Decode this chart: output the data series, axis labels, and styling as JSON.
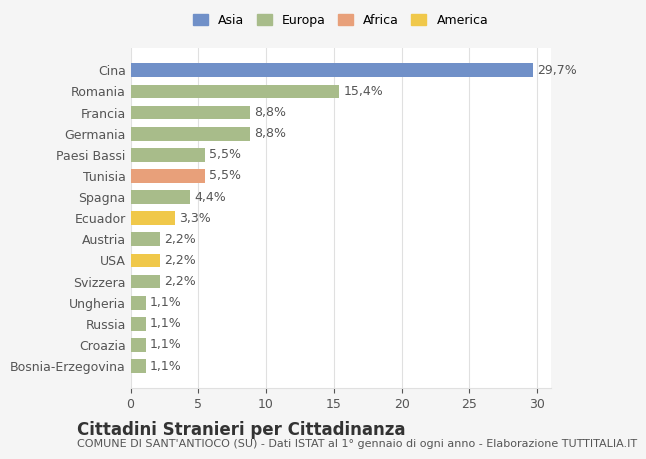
{
  "countries": [
    "Bosnia-Erzegovina",
    "Croazia",
    "Russia",
    "Ungheria",
    "Svizzera",
    "USA",
    "Austria",
    "Ecuador",
    "Spagna",
    "Tunisia",
    "Paesi Bassi",
    "Germania",
    "Francia",
    "Romania",
    "Cina"
  ],
  "values": [
    1.1,
    1.1,
    1.1,
    1.1,
    2.2,
    2.2,
    2.2,
    3.3,
    4.4,
    5.5,
    5.5,
    8.8,
    8.8,
    15.4,
    29.7
  ],
  "colors": [
    "#a8bc8a",
    "#a8bc8a",
    "#a8bc8a",
    "#a8bc8a",
    "#a8bc8a",
    "#f0c84a",
    "#a8bc8a",
    "#f0c84a",
    "#a8bc8a",
    "#e8a07a",
    "#a8bc8a",
    "#a8bc8a",
    "#a8bc8a",
    "#a8bc8a",
    "#7090c8"
  ],
  "labels": [
    "1,1%",
    "1,1%",
    "1,1%",
    "1,1%",
    "2,2%",
    "2,2%",
    "2,2%",
    "3,3%",
    "4,4%",
    "5,5%",
    "5,5%",
    "8,8%",
    "8,8%",
    "15,4%",
    "29,7%"
  ],
  "legend": [
    {
      "label": "Asia",
      "color": "#7090c8"
    },
    {
      "label": "Europa",
      "color": "#a8bc8a"
    },
    {
      "label": "Africa",
      "color": "#e8a07a"
    },
    {
      "label": "America",
      "color": "#f0c84a"
    }
  ],
  "title": "Cittadini Stranieri per Cittadinanza",
  "subtitle": "COMUNE DI SANT'ANTIOCO (SU) - Dati ISTAT al 1° gennaio di ogni anno - Elaborazione TUTTITALIA.IT",
  "xlim": [
    0,
    31
  ],
  "xticks": [
    0,
    5,
    10,
    15,
    20,
    25,
    30
  ],
  "background_color": "#f5f5f5",
  "plot_bg_color": "#ffffff",
  "grid_color": "#e0e0e0",
  "bar_height": 0.65,
  "title_fontsize": 12,
  "subtitle_fontsize": 8,
  "tick_fontsize": 9,
  "label_fontsize": 9
}
